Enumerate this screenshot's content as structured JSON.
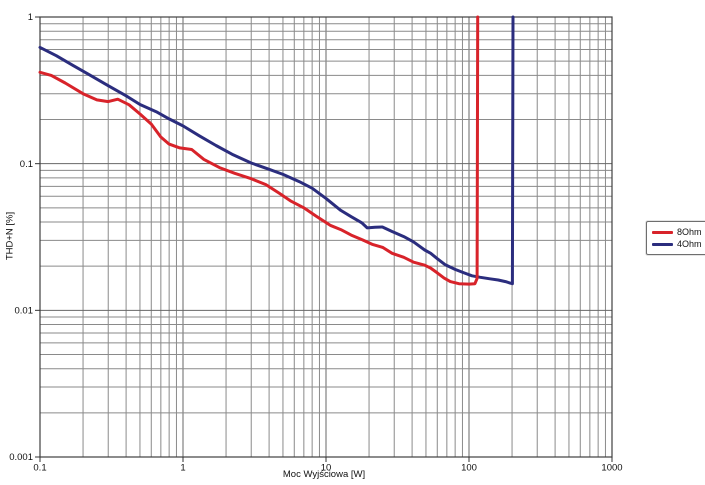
{
  "chart_data": {
    "type": "line",
    "title": "",
    "xlabel": "Moc Wyjściowa [W]",
    "ylabel": "THD+N [%]",
    "xscale": "log",
    "yscale": "log",
    "xlim": [
      0.1,
      1000
    ],
    "ylim": [
      0.001,
      1
    ],
    "x_ticks": [
      {
        "value": 0.1,
        "label": "0.1"
      },
      {
        "value": 1,
        "label": "1"
      },
      {
        "value": 10,
        "label": "10"
      },
      {
        "value": 100,
        "label": "100"
      },
      {
        "value": 1000,
        "label": "1000"
      }
    ],
    "y_ticks": [
      {
        "value": 1,
        "label": "1"
      },
      {
        "value": 0.1,
        "label": "0.1"
      },
      {
        "value": 0.01,
        "label": "0.01"
      },
      {
        "value": 0.001,
        "label": "0.001"
      }
    ],
    "grid": {
      "minor": true,
      "minor_color": "#8a8a8a",
      "major_color": "#676767",
      "border_color": "#3f3f3f"
    },
    "legend_position": "right-outside",
    "series": [
      {
        "name": "8Ohm",
        "color": "#d8232a",
        "clip_power_w": 115,
        "points": [
          [
            0.1,
            0.42
          ],
          [
            0.12,
            0.4
          ],
          [
            0.15,
            0.355
          ],
          [
            0.2,
            0.3
          ],
          [
            0.25,
            0.272
          ],
          [
            0.3,
            0.265
          ],
          [
            0.35,
            0.275
          ],
          [
            0.42,
            0.252
          ],
          [
            0.5,
            0.218
          ],
          [
            0.6,
            0.186
          ],
          [
            0.7,
            0.152
          ],
          [
            0.8,
            0.136
          ],
          [
            0.95,
            0.128
          ],
          [
            1.15,
            0.125
          ],
          [
            1.4,
            0.107
          ],
          [
            1.8,
            0.094
          ],
          [
            2.3,
            0.086
          ],
          [
            3,
            0.079
          ],
          [
            3.8,
            0.072
          ],
          [
            4.7,
            0.063
          ],
          [
            5.7,
            0.0555
          ],
          [
            7,
            0.05
          ],
          [
            8.5,
            0.044
          ],
          [
            10.7,
            0.038
          ],
          [
            12.7,
            0.0355
          ],
          [
            15,
            0.0326
          ],
          [
            18,
            0.0302
          ],
          [
            21,
            0.0282
          ],
          [
            25,
            0.0268
          ],
          [
            29,
            0.0245
          ],
          [
            35,
            0.023
          ],
          [
            41,
            0.0213
          ],
          [
            49,
            0.0203
          ],
          [
            54,
            0.0194
          ],
          [
            60,
            0.018
          ],
          [
            67,
            0.0166
          ],
          [
            74,
            0.0157
          ],
          [
            85,
            0.0152
          ],
          [
            100,
            0.0151
          ],
          [
            110,
            0.0152
          ],
          [
            114,
            0.0165
          ],
          [
            115,
            1.0
          ]
        ]
      },
      {
        "name": "4Ohm",
        "color": "#2b2d7e",
        "clip_power_w": 203,
        "points": [
          [
            0.1,
            0.62
          ],
          [
            0.13,
            0.545
          ],
          [
            0.17,
            0.468
          ],
          [
            0.22,
            0.405
          ],
          [
            0.3,
            0.34
          ],
          [
            0.4,
            0.29
          ],
          [
            0.5,
            0.253
          ],
          [
            0.65,
            0.226
          ],
          [
            0.8,
            0.202
          ],
          [
            1.0,
            0.181
          ],
          [
            1.3,
            0.155
          ],
          [
            1.7,
            0.133
          ],
          [
            2.2,
            0.116
          ],
          [
            3,
            0.101
          ],
          [
            4,
            0.0915
          ],
          [
            5,
            0.0845
          ],
          [
            6.5,
            0.0755
          ],
          [
            8,
            0.068
          ],
          [
            10,
            0.058
          ],
          [
            12.7,
            0.048
          ],
          [
            15,
            0.0435
          ],
          [
            17.8,
            0.0395
          ],
          [
            19.4,
            0.0365
          ],
          [
            22,
            0.0368
          ],
          [
            24.8,
            0.037
          ],
          [
            29,
            0.0345
          ],
          [
            35,
            0.0318
          ],
          [
            41,
            0.0293
          ],
          [
            49,
            0.0258
          ],
          [
            54,
            0.0245
          ],
          [
            60,
            0.0225
          ],
          [
            68,
            0.0205
          ],
          [
            80,
            0.019
          ],
          [
            91,
            0.0181
          ],
          [
            105,
            0.0172
          ],
          [
            120,
            0.0168
          ],
          [
            140,
            0.0164
          ],
          [
            160,
            0.0161
          ],
          [
            180,
            0.0157
          ],
          [
            195,
            0.0153
          ],
          [
            201,
            0.0152
          ],
          [
            203,
            1.0
          ]
        ]
      }
    ]
  },
  "colors": {
    "background": "#ffffff",
    "text": "#111111"
  }
}
